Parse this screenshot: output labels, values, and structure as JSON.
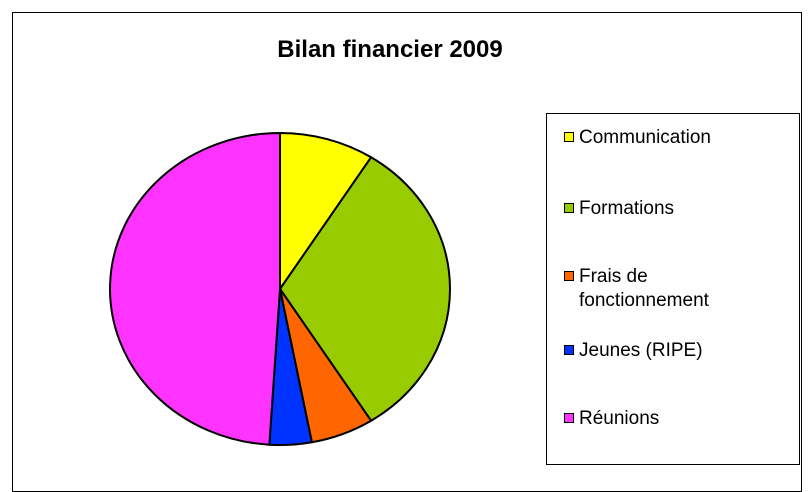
{
  "chart_data": {
    "type": "pie",
    "title": "Bilan financier 2009",
    "categories": [
      "Communication",
      "Formations",
      "Frais de fonctionnement",
      "Jeunes (RIPE)",
      "Réunions"
    ],
    "values": [
      9,
      32,
      6,
      4,
      49
    ],
    "colors": [
      "#ffff00",
      "#99cc00",
      "#ff6600",
      "#0033ff",
      "#ff33ff"
    ],
    "legend": "right"
  }
}
